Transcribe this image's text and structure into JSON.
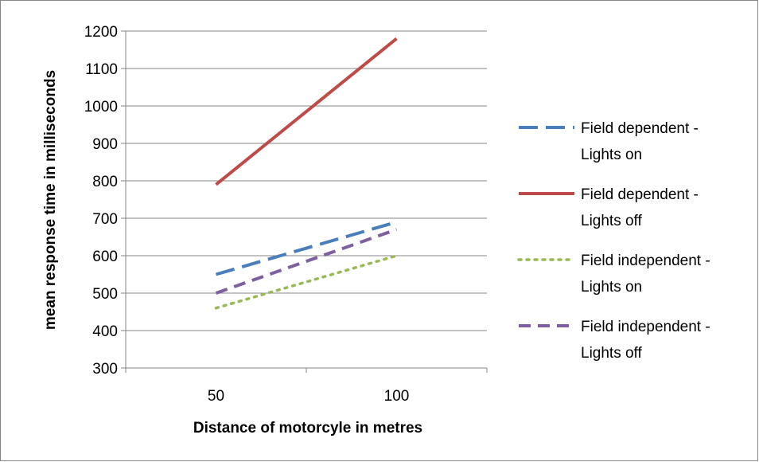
{
  "chart_data": {
    "type": "line",
    "categories": [
      "50",
      "100"
    ],
    "x": [
      50,
      100
    ],
    "series": [
      {
        "name": "Field dependent - Lights on",
        "values": [
          550,
          690
        ],
        "color": "#4a7ebb",
        "dash": "long-dash"
      },
      {
        "name": "Field dependent - Lights off",
        "values": [
          790,
          1180
        ],
        "color": "#be4b48",
        "dash": "solid"
      },
      {
        "name": "Field independent - Lights on",
        "values": [
          460,
          600
        ],
        "color": "#98b954",
        "dash": "dot"
      },
      {
        "name": "Field independent - Lights off",
        "values": [
          500,
          670
        ],
        "color": "#7d60a0",
        "dash": "dash"
      }
    ],
    "legend_lines": [
      [
        "Field dependent -",
        "Lights on"
      ],
      [
        "Field dependent -",
        "Lights off"
      ],
      [
        "Field independent -",
        "Lights on"
      ],
      [
        "Field independent -",
        "Lights off"
      ]
    ],
    "title": "",
    "xlabel": "Distance of motorcyle in metres",
    "ylabel": "mean response time in milliseconds",
    "ylim": [
      300,
      1200
    ],
    "yticks": [
      300,
      400,
      500,
      600,
      700,
      800,
      900,
      1000,
      1100,
      1200
    ],
    "grid": true,
    "legend_position": "right"
  }
}
